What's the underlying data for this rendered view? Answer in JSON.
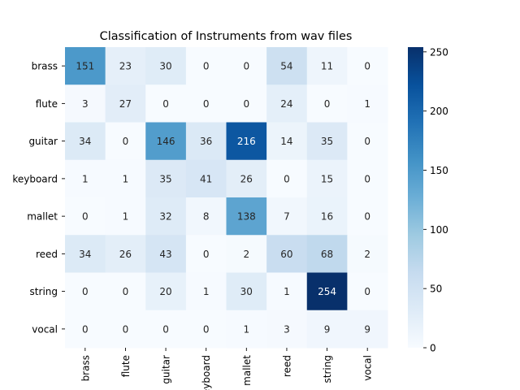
{
  "chart_data": {
    "type": "heatmap",
    "title": "Classification of Instruments from wav files",
    "xlabel": "",
    "ylabel": "",
    "row_labels": [
      "brass",
      "flute",
      "guitar",
      "keyboard",
      "mallet",
      "reed",
      "string",
      "vocal"
    ],
    "col_labels": [
      "brass",
      "flute",
      "guitar",
      "keyboard",
      "mallet",
      "reed",
      "string",
      "vocal"
    ],
    "values": [
      [
        151,
        23,
        30,
        0,
        0,
        54,
        11,
        0
      ],
      [
        3,
        27,
        0,
        0,
        0,
        24,
        0,
        1
      ],
      [
        34,
        0,
        146,
        36,
        216,
        14,
        35,
        0
      ],
      [
        1,
        1,
        35,
        41,
        26,
        0,
        15,
        0
      ],
      [
        0,
        1,
        32,
        8,
        138,
        7,
        16,
        0
      ],
      [
        34,
        26,
        43,
        0,
        2,
        60,
        68,
        2
      ],
      [
        0,
        0,
        20,
        1,
        30,
        1,
        254,
        0
      ],
      [
        0,
        0,
        0,
        0,
        1,
        3,
        9,
        9
      ]
    ],
    "colormap": "Blues",
    "vmin": 0,
    "vmax": 254,
    "colorbar_ticks": [
      0,
      50,
      100,
      150,
      200,
      250
    ],
    "colors": {
      "low": "#f7fbff",
      "high": "#08306b",
      "annotation_dark": "#262626",
      "annotation_light": "#ffffff"
    }
  }
}
